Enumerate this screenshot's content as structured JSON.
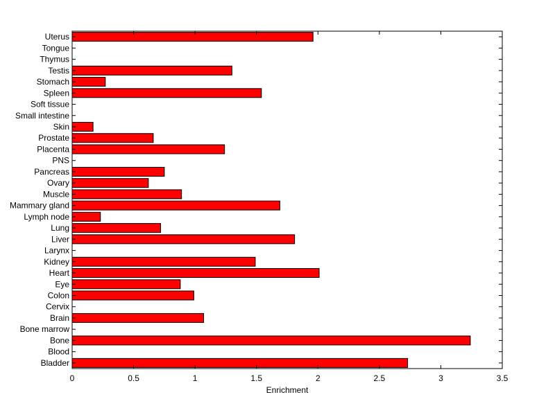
{
  "chart_data": {
    "type": "bar",
    "orientation": "horizontal",
    "xlabel": "Enrichment",
    "ylabel": "",
    "xlim": [
      0,
      3.5
    ],
    "xticks": [
      0,
      0.5,
      1,
      1.5,
      2,
      2.5,
      3,
      3.5
    ],
    "xtick_labels": [
      "0",
      "0.5",
      "1",
      "1.5",
      "2",
      "2.5",
      "3",
      "3.5"
    ],
    "bar_color": "#ff0000",
    "edge_color": "#000000",
    "grid": false,
    "categories": [
      "Bladder",
      "Blood",
      "Bone",
      "Bone marrow",
      "Brain",
      "Cervix",
      "Colon",
      "Eye",
      "Heart",
      "Kidney",
      "Larynx",
      "Liver",
      "Lung",
      "Lymph node",
      "Mammary gland",
      "Muscle",
      "Ovary",
      "Pancreas",
      "PNS",
      "Placenta",
      "Prostate",
      "Skin",
      "Small intestine",
      "Soft tissue",
      "Spleen",
      "Stomach",
      "Testis",
      "Thymus",
      "Tongue",
      "Uterus"
    ],
    "values": [
      2.73,
      0,
      3.24,
      0,
      1.07,
      0,
      0.99,
      0.88,
      2.01,
      1.49,
      0,
      1.81,
      0.72,
      0.23,
      1.69,
      0.89,
      0.62,
      0.75,
      0,
      1.24,
      0.66,
      0.17,
      0,
      0,
      1.54,
      0.27,
      1.3,
      0,
      0,
      1.96
    ]
  }
}
